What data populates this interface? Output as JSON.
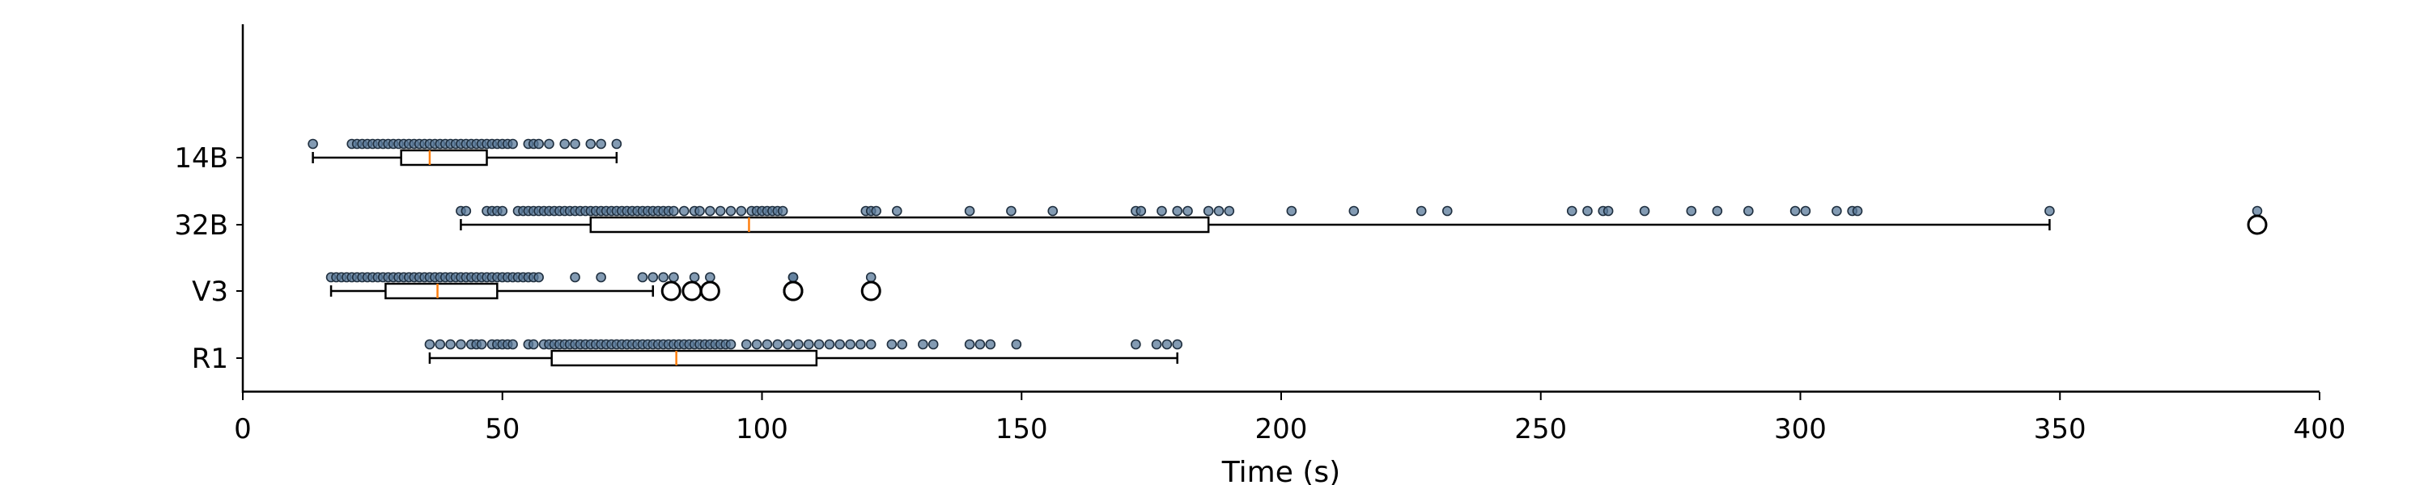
{
  "chart_data": {
    "type": "box",
    "orientation": "horizontal",
    "xlabel": "Time (s)",
    "ylabel": "",
    "xlim": [
      0,
      400
    ],
    "xticks": [
      0,
      50,
      100,
      150,
      200,
      250,
      300,
      350,
      400
    ],
    "categories": [
      "R1",
      "V3",
      "32B",
      "14B"
    ],
    "series": [
      {
        "category": "R1",
        "whisker_low": 36,
        "q1": 59.5,
        "median": 83.5,
        "q3": 110.5,
        "whisker_high": 180,
        "outliers": [],
        "points": [
          36,
          38,
          40,
          42,
          44,
          45,
          46,
          48,
          49,
          50,
          51,
          52,
          55,
          56,
          58,
          59,
          60,
          61,
          62,
          63,
          64,
          65,
          66,
          67,
          68,
          69,
          70,
          71,
          72,
          73,
          74,
          75,
          76,
          77,
          78,
          79,
          80,
          81,
          82,
          83,
          84,
          85,
          86,
          87,
          88,
          89,
          90,
          91,
          92,
          93,
          94,
          97,
          99,
          101,
          103,
          105,
          107,
          109,
          111,
          113,
          115,
          117,
          119,
          121,
          125,
          127,
          131,
          133,
          140,
          142,
          144,
          149,
          172,
          176,
          178,
          180
        ]
      },
      {
        "category": "V3",
        "whisker_low": 17,
        "q1": 27.5,
        "median": 37.5,
        "q3": 49,
        "whisker_high": 79,
        "outliers": [
          82.5,
          86.5,
          90,
          106,
          106,
          121
        ],
        "points": [
          17,
          18,
          19,
          20,
          21,
          22,
          23,
          24,
          25,
          26,
          27,
          28,
          29,
          30,
          31,
          32,
          33,
          34,
          35,
          36,
          37,
          38,
          39,
          40,
          41,
          42,
          43,
          44,
          45,
          46,
          47,
          48,
          49,
          50,
          51,
          52,
          53,
          54,
          55,
          56,
          57,
          64,
          69,
          77,
          79,
          81,
          83,
          87,
          90,
          106,
          106,
          121
        ]
      },
      {
        "category": "32B",
        "whisker_low": 42,
        "q1": 67,
        "median": 97.5,
        "q3": 186,
        "whisker_high": 348,
        "outliers": [
          388
        ],
        "points": [
          42,
          43,
          47,
          48,
          49,
          50,
          53,
          54,
          55,
          56,
          57,
          58,
          59,
          60,
          61,
          62,
          63,
          64,
          65,
          66,
          67,
          68,
          69,
          70,
          71,
          72,
          73,
          74,
          75,
          76,
          77,
          78,
          79,
          80,
          81,
          82,
          83,
          85,
          87,
          88,
          90,
          92,
          94,
          96,
          98,
          99,
          100,
          101,
          102,
          103,
          104,
          120,
          121,
          122,
          126,
          140,
          148,
          156,
          172,
          173,
          177,
          180,
          182,
          186,
          188,
          190,
          202,
          214,
          227,
          232,
          256,
          259,
          262,
          263,
          270,
          279,
          284,
          290,
          299,
          301,
          307,
          310,
          311,
          348,
          388
        ]
      },
      {
        "category": "14B",
        "whisker_low": 13.5,
        "q1": 30.5,
        "median": 36,
        "q3": 47,
        "whisker_high": 72,
        "outliers": [],
        "points": [
          13.5,
          21,
          22,
          23,
          24,
          25,
          26,
          27,
          28,
          29,
          30,
          31,
          32,
          33,
          34,
          35,
          36,
          37,
          38,
          39,
          40,
          41,
          42,
          43,
          44,
          45,
          46,
          47,
          48,
          49,
          50,
          51,
          52,
          55,
          56,
          57,
          59,
          62,
          64,
          67,
          69,
          72
        ]
      }
    ],
    "colors": {
      "median": "#ff7f0e",
      "points_fill": "#5a7a9a",
      "points_edge": "#1f2f3f",
      "box_edge": "#000000"
    },
    "grid": false,
    "legend": "none"
  }
}
